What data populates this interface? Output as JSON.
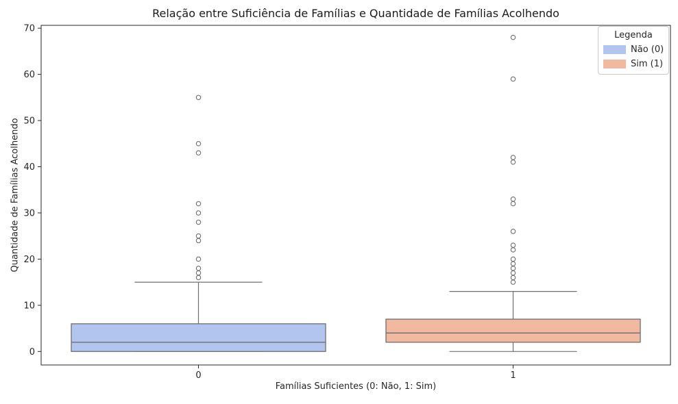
{
  "title": "Relação entre Suficiência de Famílias e Quantidade de Famílias Acolhendo",
  "xlabel": "Famílias Suficientes (0: Não, 1: Sim)",
  "ylabel": "Quantidade de Famílias Acolhendo",
  "legend": {
    "title": "Legenda",
    "position": "upper right",
    "entries": [
      {
        "label": "Não (0)",
        "color": "#b2c5ee"
      },
      {
        "label": "Sim (1)",
        "color": "#f1b9a0"
      }
    ]
  },
  "chart_data": {
    "type": "boxplot",
    "categories": [
      "0",
      "1"
    ],
    "y_ticks": [
      0,
      10,
      20,
      30,
      40,
      50,
      60,
      70
    ],
    "ylim": [
      -3,
      71
    ],
    "grid": false,
    "spine_color": "#262626",
    "text_color": "#262626",
    "line_color": "#6e6e6e",
    "series": [
      {
        "name": "Não (0)",
        "category": "0",
        "color": "#b2c5ee",
        "whisker_low": 0,
        "q1": 0,
        "median": 2,
        "q3": 6,
        "whisker_high": 15,
        "outliers": [
          16,
          17,
          18,
          20,
          24,
          25,
          28,
          30,
          32,
          43,
          45,
          55
        ]
      },
      {
        "name": "Sim (1)",
        "category": "1",
        "color": "#f1b9a0",
        "whisker_low": 0,
        "q1": 2,
        "median": 4,
        "q3": 7,
        "whisker_high": 13,
        "outliers": [
          15,
          16,
          17,
          18,
          19,
          20,
          22,
          23,
          26,
          32,
          33,
          41,
          42,
          59,
          68
        ]
      }
    ]
  }
}
